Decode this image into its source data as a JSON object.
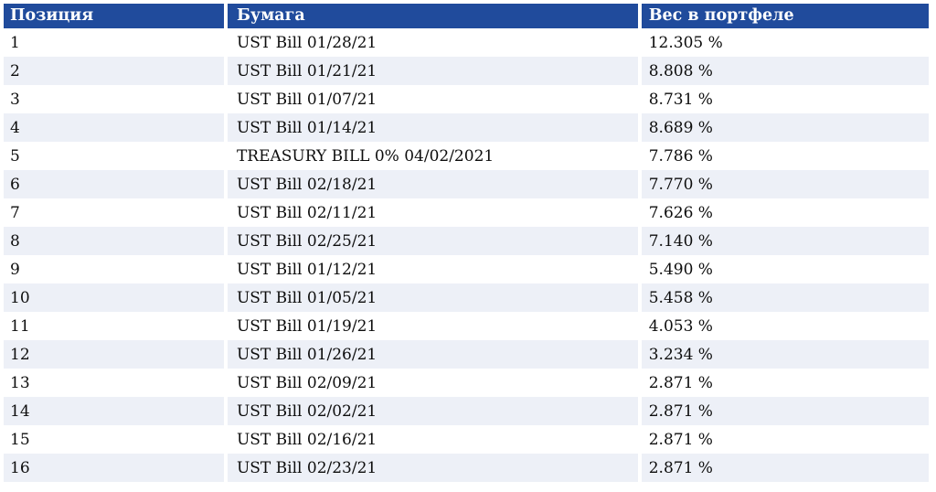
{
  "colors": {
    "header_bg": "#204b9c",
    "header_text": "#ffffff",
    "row_alt_bg": "#edf0f7",
    "row_bg": "#ffffff",
    "body_text": "#0d0d0d"
  },
  "table": {
    "columns": [
      {
        "label": "Позиция"
      },
      {
        "label": "Бумага"
      },
      {
        "label": "Вес в портфеле"
      }
    ],
    "rows": [
      {
        "position": "1",
        "security": "UST Bill 01/28/21",
        "weight": "12.305 %"
      },
      {
        "position": "2",
        "security": "UST Bill 01/21/21",
        "weight": "8.808 %"
      },
      {
        "position": "3",
        "security": "UST Bill 01/07/21",
        "weight": "8.731 %"
      },
      {
        "position": "4",
        "security": "UST Bill 01/14/21",
        "weight": "8.689 %"
      },
      {
        "position": "5",
        "security": "TREASURY BILL 0% 04/02/2021",
        "weight": "7.786 %"
      },
      {
        "position": "6",
        "security": "UST Bill 02/18/21",
        "weight": "7.770 %"
      },
      {
        "position": "7",
        "security": "UST Bill 02/11/21",
        "weight": "7.626 %"
      },
      {
        "position": "8",
        "security": "UST Bill 02/25/21",
        "weight": "7.140 %"
      },
      {
        "position": "9",
        "security": "UST Bill 01/12/21",
        "weight": "5.490 %"
      },
      {
        "position": "10",
        "security": "UST Bill 01/05/21",
        "weight": "5.458 %"
      },
      {
        "position": "11",
        "security": "UST Bill 01/19/21",
        "weight": "4.053 %"
      },
      {
        "position": "12",
        "security": "UST Bill 01/26/21",
        "weight": "3.234 %"
      },
      {
        "position": "13",
        "security": "UST Bill 02/09/21",
        "weight": "2.871 %"
      },
      {
        "position": "14",
        "security": "UST Bill 02/02/21",
        "weight": "2.871 %"
      },
      {
        "position": "15",
        "security": "UST Bill 02/16/21",
        "weight": "2.871 %"
      },
      {
        "position": "16",
        "security": "UST Bill 02/23/21",
        "weight": "2.871 %"
      }
    ]
  }
}
